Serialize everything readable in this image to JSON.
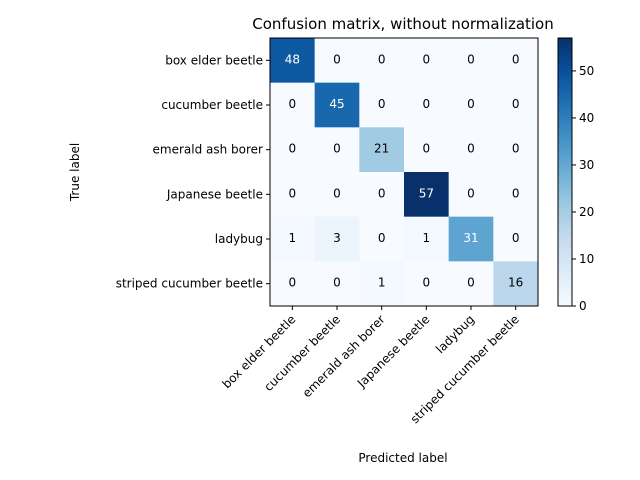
{
  "chart_data": {
    "type": "heatmap",
    "title": "Confusion matrix, without normalization",
    "xlabel": "Predicted label",
    "ylabel": "True label",
    "classes": [
      "box elder beetle",
      "cucumber beetle",
      "emerald ash borer",
      "Japanese beetle",
      "ladybug",
      "striped cucumber beetle"
    ],
    "matrix": [
      [
        48,
        0,
        0,
        0,
        0,
        0
      ],
      [
        0,
        45,
        0,
        0,
        0,
        0
      ],
      [
        0,
        0,
        21,
        0,
        0,
        0
      ],
      [
        0,
        0,
        0,
        57,
        0,
        0
      ],
      [
        1,
        3,
        0,
        1,
        31,
        0
      ],
      [
        0,
        0,
        1,
        0,
        0,
        16
      ]
    ],
    "colormap": "Blues",
    "vmin": 0,
    "vmax": 57,
    "colorbar_ticks": [
      0,
      10,
      20,
      30,
      40,
      50
    ]
  }
}
